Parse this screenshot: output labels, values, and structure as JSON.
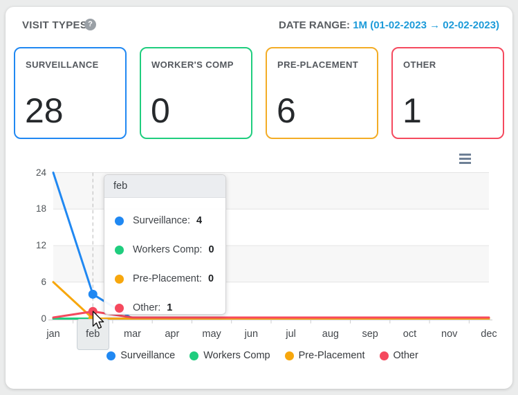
{
  "header": {
    "title": "VISIT TYPES",
    "help_icon": "?",
    "date_range_label": "DATE RANGE:",
    "date_range_value": "1M (01-02-2023 → 02-02-2023)"
  },
  "stat_cards": [
    {
      "label": "SURVEILLANCE",
      "value": "28",
      "color": "#2088f2"
    },
    {
      "label": "WORKER'S COMP",
      "value": "0",
      "color": "#1fcd7e"
    },
    {
      "label": "PRE-PLACEMENT",
      "value": "6",
      "color": "#f3ac25"
    },
    {
      "label": "OTHER",
      "value": "1",
      "color": "#f5495e"
    }
  ],
  "chart_data": {
    "type": "line",
    "categories": [
      "jan",
      "feb",
      "mar",
      "apr",
      "may",
      "jun",
      "jul",
      "aug",
      "sep",
      "oct",
      "nov",
      "dec"
    ],
    "series": [
      {
        "name": "Surveillance",
        "color": "#2088f2",
        "values": [
          24,
          4,
          0,
          0,
          0,
          0,
          0,
          0,
          0,
          0,
          0,
          0
        ]
      },
      {
        "name": "Workers Comp",
        "color": "#1fcd7e",
        "values": [
          0,
          0,
          0,
          0,
          0,
          0,
          0,
          0,
          0,
          0,
          0,
          0
        ]
      },
      {
        "name": "Pre-Placement",
        "color": "#f7a70d",
        "values": [
          6,
          0,
          0,
          0,
          0,
          0,
          0,
          0,
          0,
          0,
          0,
          0
        ]
      },
      {
        "name": "Other",
        "color": "#f5495e",
        "values": [
          0,
          1,
          0,
          0,
          0,
          0,
          0,
          0,
          0,
          0,
          0,
          0
        ]
      }
    ],
    "yticks": [
      0,
      6,
      12,
      18,
      24
    ],
    "ylim": [
      0,
      24
    ],
    "grid": true,
    "alternate_bands": true,
    "legend_position": "bottom",
    "legend": [
      "Surveillance",
      "Workers Comp",
      "Pre-Placement",
      "Other"
    ],
    "hover": {
      "category": "feb",
      "category_index": 1
    },
    "tooltip": {
      "title": "feb",
      "rows": [
        {
          "label": "Surveillance:",
          "value": "4"
        },
        {
          "label": "Workers Comp:",
          "value": "0"
        },
        {
          "label": "Pre-Placement:",
          "value": "0"
        },
        {
          "label": "Other:",
          "value": "1"
        }
      ]
    }
  },
  "colors": {
    "date_range_link": "#1d9bd9",
    "band": "#f7f7f7",
    "gridline": "#e4e4e4",
    "axis": "#cccccc",
    "crosshair": "#b8b8b8"
  }
}
